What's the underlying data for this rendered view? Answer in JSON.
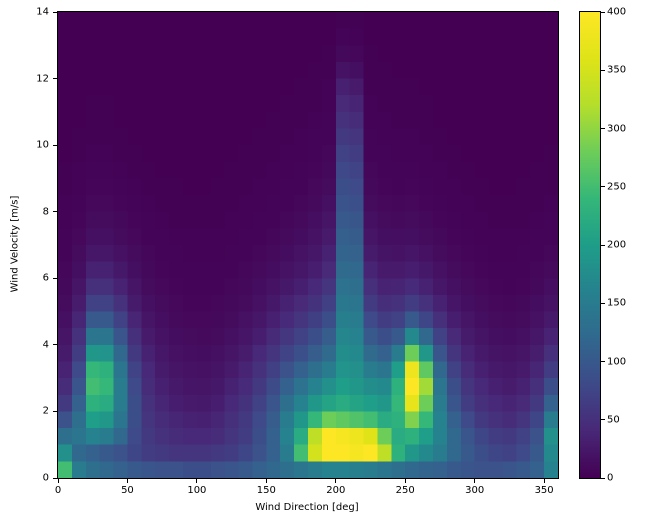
{
  "chart_data": {
    "type": "heatmap",
    "title": "",
    "xlabel": "Wind Direction [deg]",
    "ylabel": "Wind Velocity [m/s]",
    "xlim": [
      0,
      360
    ],
    "ylim": [
      0,
      14
    ],
    "xticks": [
      0,
      50,
      100,
      150,
      200,
      250,
      300,
      350
    ],
    "yticks": [
      0,
      2,
      4,
      6,
      8,
      10,
      12,
      14
    ],
    "vmin": 0,
    "vmax": 400,
    "colorbar_ticks": [
      0,
      50,
      100,
      150,
      200,
      250,
      300,
      350,
      400
    ],
    "colormap": "viridis",
    "legend": "colorbar-right",
    "grid": {
      "cols": 36,
      "rows": 28,
      "x_bin_deg": 10,
      "y_bin_ms": 0.5,
      "rows_order": "bottom_to_top"
    },
    "values": [
      [
        250,
        150,
        130,
        120,
        110,
        100,
        95,
        90,
        90,
        85,
        85,
        90,
        95,
        100,
        110,
        120,
        130,
        140,
        150,
        160,
        160,
        155,
        150,
        140,
        130,
        120,
        115,
        110,
        100,
        95,
        90,
        90,
        95,
        100,
        110,
        160
      ],
      [
        180,
        120,
        110,
        100,
        90,
        75,
        65,
        60,
        55,
        55,
        55,
        60,
        65,
        75,
        90,
        110,
        150,
        250,
        350,
        400,
        400,
        390,
        400,
        330,
        230,
        190,
        170,
        150,
        120,
        100,
        85,
        75,
        70,
        80,
        100,
        170
      ],
      [
        130,
        140,
        160,
        150,
        120,
        80,
        60,
        50,
        45,
        40,
        40,
        45,
        55,
        65,
        85,
        110,
        160,
        220,
        330,
        400,
        390,
        380,
        360,
        280,
        220,
        230,
        200,
        160,
        120,
        95,
        75,
        65,
        60,
        70,
        90,
        180
      ],
      [
        90,
        130,
        200,
        190,
        140,
        85,
        55,
        45,
        38,
        33,
        32,
        38,
        48,
        60,
        80,
        105,
        150,
        190,
        240,
        280,
        270,
        260,
        250,
        220,
        230,
        290,
        240,
        160,
        110,
        80,
        60,
        50,
        45,
        55,
        75,
        150
      ],
      [
        60,
        110,
        230,
        220,
        150,
        85,
        50,
        38,
        30,
        26,
        25,
        30,
        40,
        52,
        70,
        95,
        130,
        160,
        190,
        210,
        220,
        210,
        200,
        190,
        240,
        370,
        280,
        150,
        95,
        65,
        48,
        40,
        36,
        42,
        60,
        110
      ],
      [
        45,
        95,
        250,
        240,
        150,
        80,
        45,
        32,
        25,
        21,
        20,
        24,
        33,
        44,
        60,
        82,
        110,
        135,
        160,
        180,
        200,
        190,
        175,
        170,
        230,
        400,
        310,
        140,
        85,
        55,
        40,
        32,
        28,
        33,
        48,
        85
      ],
      [
        35,
        80,
        240,
        230,
        140,
        72,
        40,
        27,
        20,
        17,
        16,
        19,
        26,
        36,
        50,
        68,
        90,
        110,
        130,
        150,
        185,
        180,
        150,
        140,
        200,
        380,
        270,
        120,
        70,
        45,
        32,
        25,
        22,
        26,
        38,
        65
      ],
      [
        27,
        65,
        190,
        185,
        120,
        60,
        33,
        22,
        16,
        13,
        12,
        15,
        20,
        28,
        40,
        55,
        72,
        88,
        105,
        125,
        175,
        170,
        125,
        110,
        150,
        280,
        190,
        95,
        55,
        35,
        25,
        19,
        17,
        20,
        29,
        48
      ],
      [
        20,
        50,
        140,
        140,
        95,
        48,
        26,
        17,
        12,
        10,
        9,
        11,
        15,
        21,
        30,
        43,
        57,
        70,
        85,
        105,
        165,
        160,
        100,
        85,
        100,
        170,
        120,
        70,
        42,
        27,
        19,
        14,
        12,
        15,
        22,
        35
      ],
      [
        15,
        38,
        100,
        100,
        70,
        37,
        20,
        13,
        9,
        7,
        7,
        8,
        11,
        16,
        22,
        32,
        44,
        55,
        67,
        85,
        155,
        150,
        80,
        63,
        70,
        100,
        75,
        48,
        30,
        20,
        14,
        10,
        9,
        11,
        16,
        25
      ],
      [
        11,
        28,
        70,
        70,
        50,
        27,
        15,
        10,
        7,
        5,
        5,
        6,
        8,
        11,
        16,
        24,
        33,
        42,
        52,
        68,
        145,
        140,
        62,
        47,
        50,
        65,
        50,
        33,
        21,
        14,
        10,
        7,
        6,
        8,
        12,
        18
      ],
      [
        8,
        20,
        48,
        48,
        35,
        20,
        11,
        7,
        5,
        4,
        4,
        4,
        6,
        8,
        12,
        17,
        24,
        31,
        40,
        54,
        135,
        130,
        48,
        35,
        36,
        44,
        34,
        23,
        15,
        10,
        7,
        5,
        4,
        5,
        8,
        13
      ],
      [
        6,
        14,
        33,
        33,
        24,
        14,
        8,
        5,
        4,
        3,
        3,
        3,
        4,
        6,
        9,
        12,
        17,
        23,
        30,
        42,
        125,
        120,
        36,
        26,
        26,
        30,
        24,
        16,
        10,
        7,
        5,
        3,
        3,
        4,
        6,
        9
      ],
      [
        4,
        10,
        22,
        22,
        16,
        10,
        6,
        4,
        3,
        2,
        2,
        2,
        3,
        4,
        6,
        9,
        12,
        17,
        23,
        33,
        115,
        112,
        27,
        19,
        18,
        21,
        16,
        11,
        7,
        5,
        3,
        2,
        2,
        3,
        4,
        6
      ],
      [
        3,
        7,
        15,
        15,
        11,
        7,
        4,
        3,
        2,
        2,
        2,
        2,
        2,
        3,
        4,
        6,
        9,
        12,
        17,
        26,
        108,
        104,
        20,
        14,
        13,
        14,
        11,
        8,
        5,
        3,
        2,
        2,
        2,
        2,
        3,
        4
      ],
      [
        2,
        5,
        10,
        10,
        8,
        5,
        3,
        2,
        1,
        1,
        1,
        1,
        2,
        2,
        3,
        4,
        6,
        9,
        13,
        20,
        100,
        96,
        15,
        10,
        9,
        10,
        8,
        5,
        3,
        2,
        2,
        1,
        1,
        1,
        2,
        3
      ],
      [
        2,
        3,
        7,
        7,
        5,
        3,
        2,
        1,
        1,
        1,
        1,
        1,
        1,
        2,
        2,
        3,
        4,
        6,
        9,
        15,
        92,
        88,
        11,
        7,
        6,
        7,
        5,
        4,
        2,
        2,
        1,
        1,
        1,
        1,
        1,
        2
      ],
      [
        1,
        2,
        5,
        5,
        3,
        2,
        1,
        1,
        1,
        0,
        0,
        1,
        1,
        1,
        2,
        2,
        3,
        4,
        7,
        11,
        85,
        80,
        8,
        5,
        4,
        5,
        4,
        2,
        2,
        1,
        1,
        0,
        0,
        1,
        1,
        1
      ],
      [
        1,
        2,
        3,
        3,
        2,
        1,
        1,
        0,
        0,
        0,
        0,
        0,
        1,
        1,
        1,
        2,
        2,
        3,
        5,
        8,
        78,
        72,
        6,
        4,
        3,
        3,
        2,
        2,
        1,
        1,
        0,
        0,
        0,
        0,
        1,
        1
      ],
      [
        0,
        1,
        2,
        2,
        1,
        1,
        0,
        0,
        0,
        0,
        0,
        0,
        0,
        1,
        1,
        1,
        2,
        2,
        4,
        6,
        70,
        64,
        4,
        3,
        2,
        2,
        2,
        1,
        1,
        0,
        0,
        0,
        0,
        0,
        0,
        1
      ],
      [
        0,
        1,
        1,
        1,
        1,
        0,
        0,
        0,
        0,
        0,
        0,
        0,
        0,
        0,
        1,
        1,
        1,
        2,
        3,
        4,
        60,
        54,
        3,
        2,
        2,
        2,
        1,
        1,
        0,
        0,
        0,
        0,
        0,
        0,
        0,
        0
      ],
      [
        0,
        0,
        1,
        1,
        0,
        0,
        0,
        0,
        0,
        0,
        0,
        0,
        0,
        0,
        0,
        1,
        1,
        1,
        2,
        3,
        50,
        45,
        2,
        2,
        1,
        1,
        1,
        0,
        0,
        0,
        0,
        0,
        0,
        0,
        0,
        0
      ],
      [
        0,
        0,
        1,
        1,
        0,
        0,
        0,
        0,
        0,
        0,
        0,
        0,
        0,
        0,
        0,
        0,
        1,
        1,
        1,
        2,
        42,
        36,
        2,
        1,
        1,
        1,
        1,
        0,
        0,
        0,
        0,
        0,
        0,
        0,
        0,
        0
      ],
      [
        0,
        0,
        0,
        0,
        0,
        0,
        0,
        0,
        0,
        0,
        0,
        0,
        0,
        0,
        0,
        0,
        0,
        1,
        1,
        2,
        32,
        26,
        1,
        1,
        1,
        1,
        0,
        0,
        0,
        0,
        0,
        0,
        0,
        0,
        0,
        0
      ],
      [
        0,
        0,
        0,
        0,
        0,
        0,
        0,
        0,
        0,
        0,
        0,
        0,
        0,
        0,
        0,
        0,
        0,
        0,
        1,
        1,
        18,
        14,
        1,
        1,
        0,
        0,
        0,
        0,
        0,
        0,
        0,
        0,
        0,
        0,
        0,
        0
      ],
      [
        0,
        0,
        0,
        0,
        0,
        0,
        0,
        0,
        0,
        0,
        0,
        0,
        0,
        0,
        0,
        0,
        0,
        0,
        0,
        1,
        8,
        6,
        1,
        0,
        0,
        0,
        0,
        0,
        0,
        0,
        0,
        0,
        0,
        0,
        0,
        0
      ],
      [
        0,
        0,
        0,
        0,
        0,
        0,
        0,
        0,
        0,
        0,
        0,
        0,
        0,
        0,
        0,
        0,
        0,
        0,
        0,
        0,
        3,
        2,
        0,
        0,
        0,
        0,
        0,
        0,
        0,
        0,
        0,
        0,
        0,
        0,
        0,
        0
      ],
      [
        0,
        0,
        0,
        0,
        0,
        0,
        0,
        0,
        0,
        0,
        0,
        0,
        0,
        0,
        0,
        0,
        0,
        0,
        0,
        0,
        1,
        1,
        0,
        0,
        0,
        0,
        0,
        0,
        0,
        0,
        0,
        0,
        0,
        0,
        0,
        0
      ]
    ]
  },
  "colors": {
    "background": "#ffffff",
    "frame": "#000000",
    "text": "#000000",
    "viridis_stops": [
      [
        0.0,
        "#440154"
      ],
      [
        0.1,
        "#482878"
      ],
      [
        0.2,
        "#3e4a89"
      ],
      [
        0.3,
        "#31688e"
      ],
      [
        0.4,
        "#26828e"
      ],
      [
        0.5,
        "#1f9e89"
      ],
      [
        0.6,
        "#35b779"
      ],
      [
        0.7,
        "#6dcd59"
      ],
      [
        0.8,
        "#b4de2c"
      ],
      [
        0.9,
        "#dfe318"
      ],
      [
        1.0,
        "#fde725"
      ]
    ]
  }
}
